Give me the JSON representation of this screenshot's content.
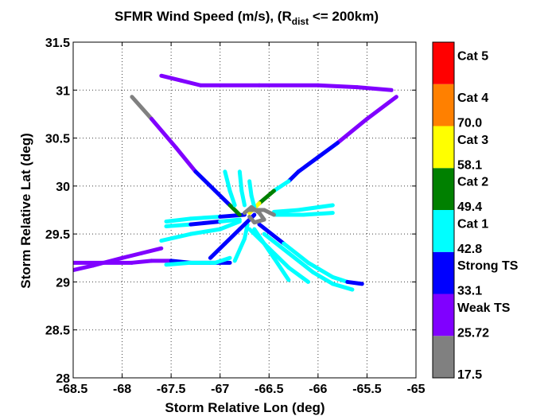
{
  "chart_data": {
    "type": "scatter",
    "title": {
      "prefix": "SFMR Wind Speed (m/s), (R",
      "subscript": "dist",
      "suffix": " <= 200km)"
    },
    "xlabel": "Storm Relative Lon (deg)",
    "ylabel": "Storm Relative Lat (deg)",
    "xlim": [
      -68.5,
      -65
    ],
    "ylim": [
      28,
      31.5
    ],
    "xticks": [
      -68.5,
      -68,
      -67.5,
      -67,
      -66.5,
      -66,
      -65.5,
      -65
    ],
    "yticks": [
      28,
      28.5,
      29,
      29.5,
      30,
      30.5,
      31,
      31.5
    ],
    "xtick_labels": [
      "-68.5",
      "-68",
      "-67.5",
      "-67",
      "-66.5",
      "-66",
      "-65.5",
      "-65"
    ],
    "ytick_labels": [
      "28",
      "28.5",
      "29",
      "29.5",
      "30",
      "30.5",
      "31",
      "31.5"
    ],
    "grid": true,
    "colorbar": {
      "bands": [
        {
          "color": "#808080",
          "value_label": "17.5",
          "category_label": ""
        },
        {
          "color": "#8000ff",
          "value_label": "25.72",
          "category_label": "Weak TS"
        },
        {
          "color": "#0000ff",
          "value_label": "33.1",
          "category_label": "Strong TS"
        },
        {
          "color": "#00ffff",
          "value_label": "42.8",
          "category_label": "Cat 1"
        },
        {
          "color": "#008000",
          "value_label": "49.4",
          "category_label": "Cat 2"
        },
        {
          "color": "#ffff00",
          "value_label": "58.1",
          "category_label": "Cat 3"
        },
        {
          "color": "#ff8000",
          "value_label": "70.0",
          "category_label": "Cat 4"
        },
        {
          "color": "#ff0000",
          "value_label": "",
          "category_label": "Cat 5"
        }
      ]
    },
    "series": [
      {
        "points": [
          [
            -68.6,
            29.1
          ],
          [
            -68.3,
            29.17
          ],
          [
            -68.0,
            29.25
          ],
          [
            -67.8,
            29.3
          ],
          [
            -67.6,
            29.35
          ]
        ],
        "colors": [
          "#8000ff",
          "#8000ff",
          "#8000ff",
          "#8000ff",
          "#8000ff"
        ]
      },
      {
        "points": [
          [
            -68.55,
            29.2
          ],
          [
            -68.2,
            29.2
          ],
          [
            -67.9,
            29.2
          ],
          [
            -67.7,
            29.22
          ],
          [
            -67.5,
            29.22
          ],
          [
            -67.3,
            29.2
          ],
          [
            -67.1,
            29.2
          ],
          [
            -66.9,
            29.2
          ]
        ],
        "colors": [
          "#8000ff",
          "#8000ff",
          "#8000ff",
          "#8000ff",
          "#0000ff",
          "#0000ff",
          "#0000ff",
          "#0000ff"
        ]
      },
      {
        "points": [
          [
            -67.55,
            29.18
          ],
          [
            -67.3,
            29.2
          ],
          [
            -67.05,
            29.2
          ],
          [
            -66.9,
            29.25
          ]
        ],
        "colors": [
          "#00ffff",
          "#00ffff",
          "#00ffff",
          "#00ffff"
        ]
      },
      {
        "points": [
          [
            -66.85,
            29.22
          ],
          [
            -66.75,
            29.45
          ],
          [
            -66.72,
            29.6
          ]
        ],
        "colors": [
          "#00ffff",
          "#00ffff",
          "#0000ff"
        ]
      },
      {
        "points": [
          [
            -67.1,
            29.25
          ],
          [
            -66.95,
            29.4
          ],
          [
            -66.8,
            29.55
          ],
          [
            -66.65,
            29.7
          ]
        ],
        "colors": [
          "#0000ff",
          "#0000ff",
          "#0000ff",
          "#0000ff"
        ]
      },
      {
        "points": [
          [
            -67.6,
            29.43
          ],
          [
            -67.3,
            29.5
          ],
          [
            -67.0,
            29.55
          ],
          [
            -66.8,
            29.63
          ]
        ],
        "colors": [
          "#00ffff",
          "#00ffff",
          "#00ffff",
          "#0000ff"
        ]
      },
      {
        "points": [
          [
            -67.55,
            29.58
          ],
          [
            -67.3,
            29.6
          ],
          [
            -67.0,
            29.63
          ],
          [
            -66.8,
            29.65
          ]
        ],
        "colors": [
          "#00ffff",
          "#0000ff",
          "#00ffff",
          "#00ffff"
        ]
      },
      {
        "points": [
          [
            -67.55,
            29.63
          ],
          [
            -67.3,
            29.66
          ],
          [
            -67.0,
            29.68
          ],
          [
            -66.75,
            29.7
          ]
        ],
        "colors": [
          "#00ffff",
          "#00ffff",
          "#0000ff",
          "#00ffff"
        ]
      },
      {
        "points": [
          [
            -67.9,
            30.93
          ],
          [
            -67.7,
            30.7
          ],
          [
            -67.45,
            30.4
          ],
          [
            -67.25,
            30.15
          ],
          [
            -67.05,
            29.95
          ],
          [
            -66.9,
            29.8
          ],
          [
            -66.8,
            29.7
          ]
        ],
        "colors": [
          "#808080",
          "#8000ff",
          "#8000ff",
          "#0000ff",
          "#0000ff",
          "#008000",
          "#ffff00"
        ]
      },
      {
        "points": [
          [
            -65.2,
            30.93
          ],
          [
            -65.5,
            30.7
          ],
          [
            -65.8,
            30.45
          ],
          [
            -66.0,
            30.3
          ],
          [
            -66.2,
            30.15
          ],
          [
            -66.3,
            30.05
          ],
          [
            -66.45,
            29.95
          ],
          [
            -66.6,
            29.82
          ],
          [
            -66.7,
            29.72
          ]
        ],
        "colors": [
          "#8000ff",
          "#8000ff",
          "#0000ff",
          "#0000ff",
          "#0000ff",
          "#00ffff",
          "#008000",
          "#ffff00",
          "#00ffff"
        ]
      },
      {
        "points": [
          [
            -67.6,
            31.15
          ],
          [
            -67.4,
            31.1
          ],
          [
            -67.2,
            31.05
          ],
          [
            -66.6,
            31.05
          ],
          [
            -66.0,
            31.05
          ],
          [
            -65.6,
            31.03
          ],
          [
            -65.25,
            31.0
          ]
        ],
        "colors": [
          "#8000ff",
          "#8000ff",
          "#8000ff",
          "#8000ff",
          "#8000ff",
          "#8000ff",
          "#8000ff"
        ]
      },
      {
        "points": [
          [
            -66.95,
            30.15
          ],
          [
            -66.9,
            29.95
          ],
          [
            -66.85,
            29.8
          ]
        ],
        "colors": [
          "#00ffff",
          "#00ffff",
          "#00ffff"
        ]
      },
      {
        "points": [
          [
            -66.8,
            30.15
          ],
          [
            -66.78,
            29.95
          ],
          [
            -66.75,
            29.8
          ]
        ],
        "colors": [
          "#00ffff",
          "#00ffff",
          "#00ffff"
        ]
      },
      {
        "points": [
          [
            -66.7,
            30.05
          ],
          [
            -66.68,
            29.9
          ],
          [
            -66.65,
            29.78
          ]
        ],
        "colors": [
          "#00ffff",
          "#00ffff",
          "#00ffff"
        ]
      },
      {
        "points": [
          [
            -66.45,
            29.73
          ],
          [
            -66.2,
            29.75
          ],
          [
            -65.85,
            29.8
          ]
        ],
        "colors": [
          "#00ffff",
          "#00ffff",
          "#00ffff"
        ]
      },
      {
        "points": [
          [
            -66.45,
            29.7
          ],
          [
            -66.15,
            29.7
          ],
          [
            -65.85,
            29.72
          ]
        ],
        "colors": [
          "#00ffff",
          "#00ffff",
          "#00ffff"
        ]
      },
      {
        "points": [
          [
            -66.6,
            29.6
          ],
          [
            -66.35,
            29.4
          ],
          [
            -66.1,
            29.2
          ],
          [
            -65.85,
            29.05
          ],
          [
            -65.7,
            29.0
          ],
          [
            -65.55,
            28.98
          ]
        ],
        "colors": [
          "#0000ff",
          "#00ffff",
          "#00ffff",
          "#00ffff",
          "#0000ff",
          "#0000ff"
        ]
      },
      {
        "points": [
          [
            -66.55,
            29.5
          ],
          [
            -66.3,
            29.3
          ],
          [
            -66.05,
            29.1
          ],
          [
            -65.85,
            28.98
          ],
          [
            -65.65,
            28.92
          ]
        ],
        "colors": [
          "#00ffff",
          "#00ffff",
          "#00ffff",
          "#00ffff",
          "#0000ff"
        ]
      },
      {
        "points": [
          [
            -66.7,
            29.55
          ],
          [
            -66.5,
            29.35
          ],
          [
            -66.3,
            29.15
          ],
          [
            -66.1,
            29.0
          ]
        ],
        "colors": [
          "#00ffff",
          "#00ffff",
          "#00ffff",
          "#00ffff"
        ]
      },
      {
        "points": [
          [
            -66.65,
            29.55
          ],
          [
            -66.45,
            29.25
          ],
          [
            -66.3,
            29.02
          ]
        ],
        "colors": [
          "#00ffff",
          "#00ffff",
          "#00ffff"
        ]
      },
      {
        "points": [
          [
            -66.75,
            29.72
          ],
          [
            -66.68,
            29.78
          ],
          [
            -66.6,
            29.72
          ],
          [
            -66.55,
            29.65
          ],
          [
            -66.65,
            29.62
          ],
          [
            -66.7,
            29.68
          ]
        ],
        "colors": [
          "#808080",
          "#808080",
          "#808080",
          "#808080",
          "#808080",
          "#808080"
        ]
      },
      {
        "points": [
          [
            -66.7,
            29.75
          ],
          [
            -66.55,
            29.75
          ],
          [
            -66.45,
            29.7
          ]
        ],
        "colors": [
          "#808080",
          "#808080",
          "#808080"
        ]
      }
    ]
  }
}
